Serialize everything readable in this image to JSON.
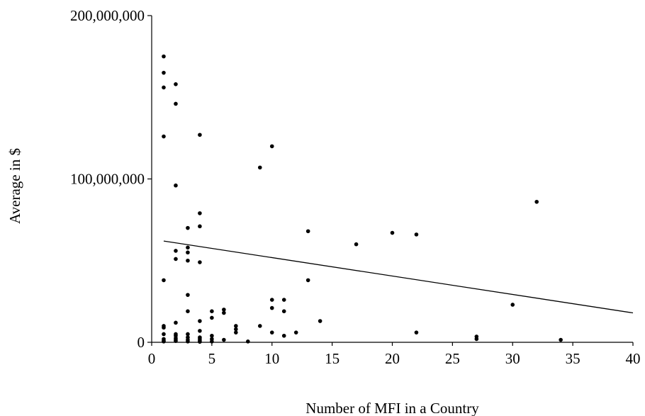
{
  "chart_data": {
    "type": "scatter",
    "title": "",
    "xlabel": "Number of MFI in a Country",
    "ylabel": "Average in $",
    "xlim": [
      0,
      40
    ],
    "ylim": [
      0,
      200000000
    ],
    "x_ticks": [
      0,
      5,
      10,
      15,
      20,
      25,
      30,
      35,
      40
    ],
    "x_tick_labels": [
      "0",
      "5",
      "10",
      "15",
      "20",
      "25",
      "30",
      "35",
      "40"
    ],
    "y_ticks": [
      0,
      100000000,
      200000000
    ],
    "y_tick_labels": [
      "0",
      "100,000,000",
      "200,000,000"
    ],
    "grid": false,
    "legend": "none",
    "marker_color": "#000000",
    "series": [
      {
        "values_xy": [
          [
            1,
            175000000
          ],
          [
            1,
            165000000
          ],
          [
            1,
            156000000
          ],
          [
            1,
            126000000
          ],
          [
            1,
            38000000
          ],
          [
            1,
            10000000
          ],
          [
            1,
            9000000
          ],
          [
            1,
            5000000
          ],
          [
            1,
            2000000
          ],
          [
            1,
            1000000
          ],
          [
            1,
            500000
          ],
          [
            2,
            158000000
          ],
          [
            2,
            146000000
          ],
          [
            2,
            96000000
          ],
          [
            2,
            56000000
          ],
          [
            2,
            51000000
          ],
          [
            2,
            12000000
          ],
          [
            2,
            5000000
          ],
          [
            2,
            4000000
          ],
          [
            2,
            2500000
          ],
          [
            2,
            1500000
          ],
          [
            2,
            800000
          ],
          [
            3,
            70000000
          ],
          [
            3,
            58000000
          ],
          [
            3,
            55000000
          ],
          [
            3,
            50000000
          ],
          [
            3,
            29000000
          ],
          [
            3,
            19000000
          ],
          [
            3,
            5000000
          ],
          [
            3,
            3000000
          ],
          [
            3,
            1500000
          ],
          [
            3,
            500000
          ],
          [
            4,
            127000000
          ],
          [
            4,
            79000000
          ],
          [
            4,
            71000000
          ],
          [
            4,
            49000000
          ],
          [
            4,
            13000000
          ],
          [
            4,
            7000000
          ],
          [
            4,
            3000000
          ],
          [
            4,
            2000000
          ],
          [
            4,
            1000000
          ],
          [
            4,
            300000
          ],
          [
            5,
            19000000
          ],
          [
            5,
            15000000
          ],
          [
            5,
            4000000
          ],
          [
            5,
            2000000
          ],
          [
            5,
            500000
          ],
          [
            6,
            20000000
          ],
          [
            6,
            18000000
          ],
          [
            6,
            1500000
          ],
          [
            7,
            10000000
          ],
          [
            7,
            8000000
          ],
          [
            7,
            6000000
          ],
          [
            8,
            500000
          ],
          [
            9,
            107000000
          ],
          [
            9,
            10000000
          ],
          [
            10,
            120000000
          ],
          [
            10,
            26000000
          ],
          [
            10,
            21000000
          ],
          [
            10,
            6000000
          ],
          [
            11,
            26000000
          ],
          [
            11,
            19000000
          ],
          [
            11,
            4000000
          ],
          [
            12,
            6000000
          ],
          [
            13,
            68000000
          ],
          [
            13,
            38000000
          ],
          [
            14,
            13000000
          ],
          [
            17,
            60000000
          ],
          [
            20,
            67000000
          ],
          [
            22,
            66000000
          ],
          [
            22,
            6000000
          ],
          [
            27,
            3500000
          ],
          [
            27,
            2000000
          ],
          [
            30,
            23000000
          ],
          [
            32,
            86000000
          ],
          [
            34,
            1500000
          ]
        ]
      }
    ],
    "trendline": {
      "type": "linear",
      "x": [
        1,
        40
      ],
      "y": [
        62000000,
        18000000
      ]
    }
  }
}
